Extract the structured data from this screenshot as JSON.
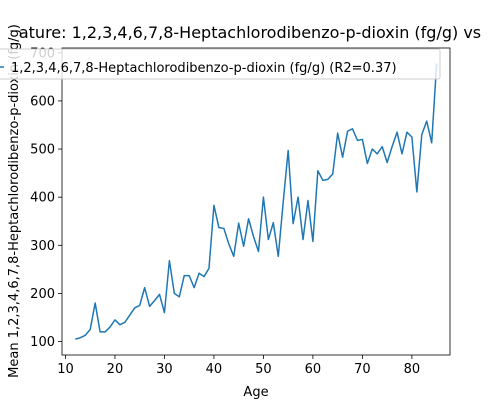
{
  "chart_data": {
    "type": "line",
    "title": "ature: 1,2,3,4,6,7,8-Heptachlorodibenzo-p-dioxin (fg/g) vs",
    "xlabel": "Age",
    "ylabel": "Mean 1,2,3,4,6,7,8-Heptachlorodibenzo-p-dioxin (fg/g)",
    "xlim": [
      9.3,
      87.7
    ],
    "ylim": [
      72,
      710
    ],
    "xticks": [
      10,
      20,
      30,
      40,
      50,
      60,
      70,
      80
    ],
    "yticks": [
      100,
      200,
      300,
      400,
      500,
      600,
      700
    ],
    "grid": false,
    "legend_position": "top",
    "series_color": "#1f77b4",
    "series": [
      {
        "name": "1,2,3,4,6,7,8-Heptachlorodibenzo-p-dioxin (fg/g) (R2=0.37)",
        "x": [
          12,
          13,
          14,
          15,
          16,
          17,
          18,
          19,
          20,
          21,
          22,
          23,
          24,
          25,
          26,
          27,
          28,
          29,
          30,
          31,
          32,
          33,
          34,
          35,
          36,
          37,
          38,
          39,
          40,
          41,
          42,
          43,
          44,
          45,
          46,
          47,
          48,
          49,
          50,
          51,
          52,
          53,
          54,
          55,
          56,
          57,
          58,
          59,
          60,
          61,
          62,
          63,
          64,
          65,
          66,
          67,
          68,
          69,
          70,
          71,
          72,
          73,
          74,
          75,
          76,
          77,
          78,
          79,
          80,
          81,
          82,
          83,
          84,
          85
        ],
        "y": [
          105,
          108,
          113,
          125,
          180,
          120,
          120,
          130,
          145,
          135,
          140,
          155,
          170,
          175,
          212,
          173,
          185,
          198,
          160,
          268,
          200,
          193,
          237,
          237,
          212,
          242,
          235,
          252,
          383,
          337,
          335,
          303,
          277,
          346,
          298,
          355,
          318,
          287,
          400,
          312,
          347,
          277,
          390,
          497,
          345,
          400,
          312,
          393,
          308,
          455,
          435,
          437,
          448,
          533,
          483,
          537,
          542,
          518,
          520,
          470,
          500,
          490,
          505,
          472,
          505,
          535,
          490,
          535,
          525,
          411,
          530,
          558,
          513,
          678
        ]
      }
    ]
  }
}
